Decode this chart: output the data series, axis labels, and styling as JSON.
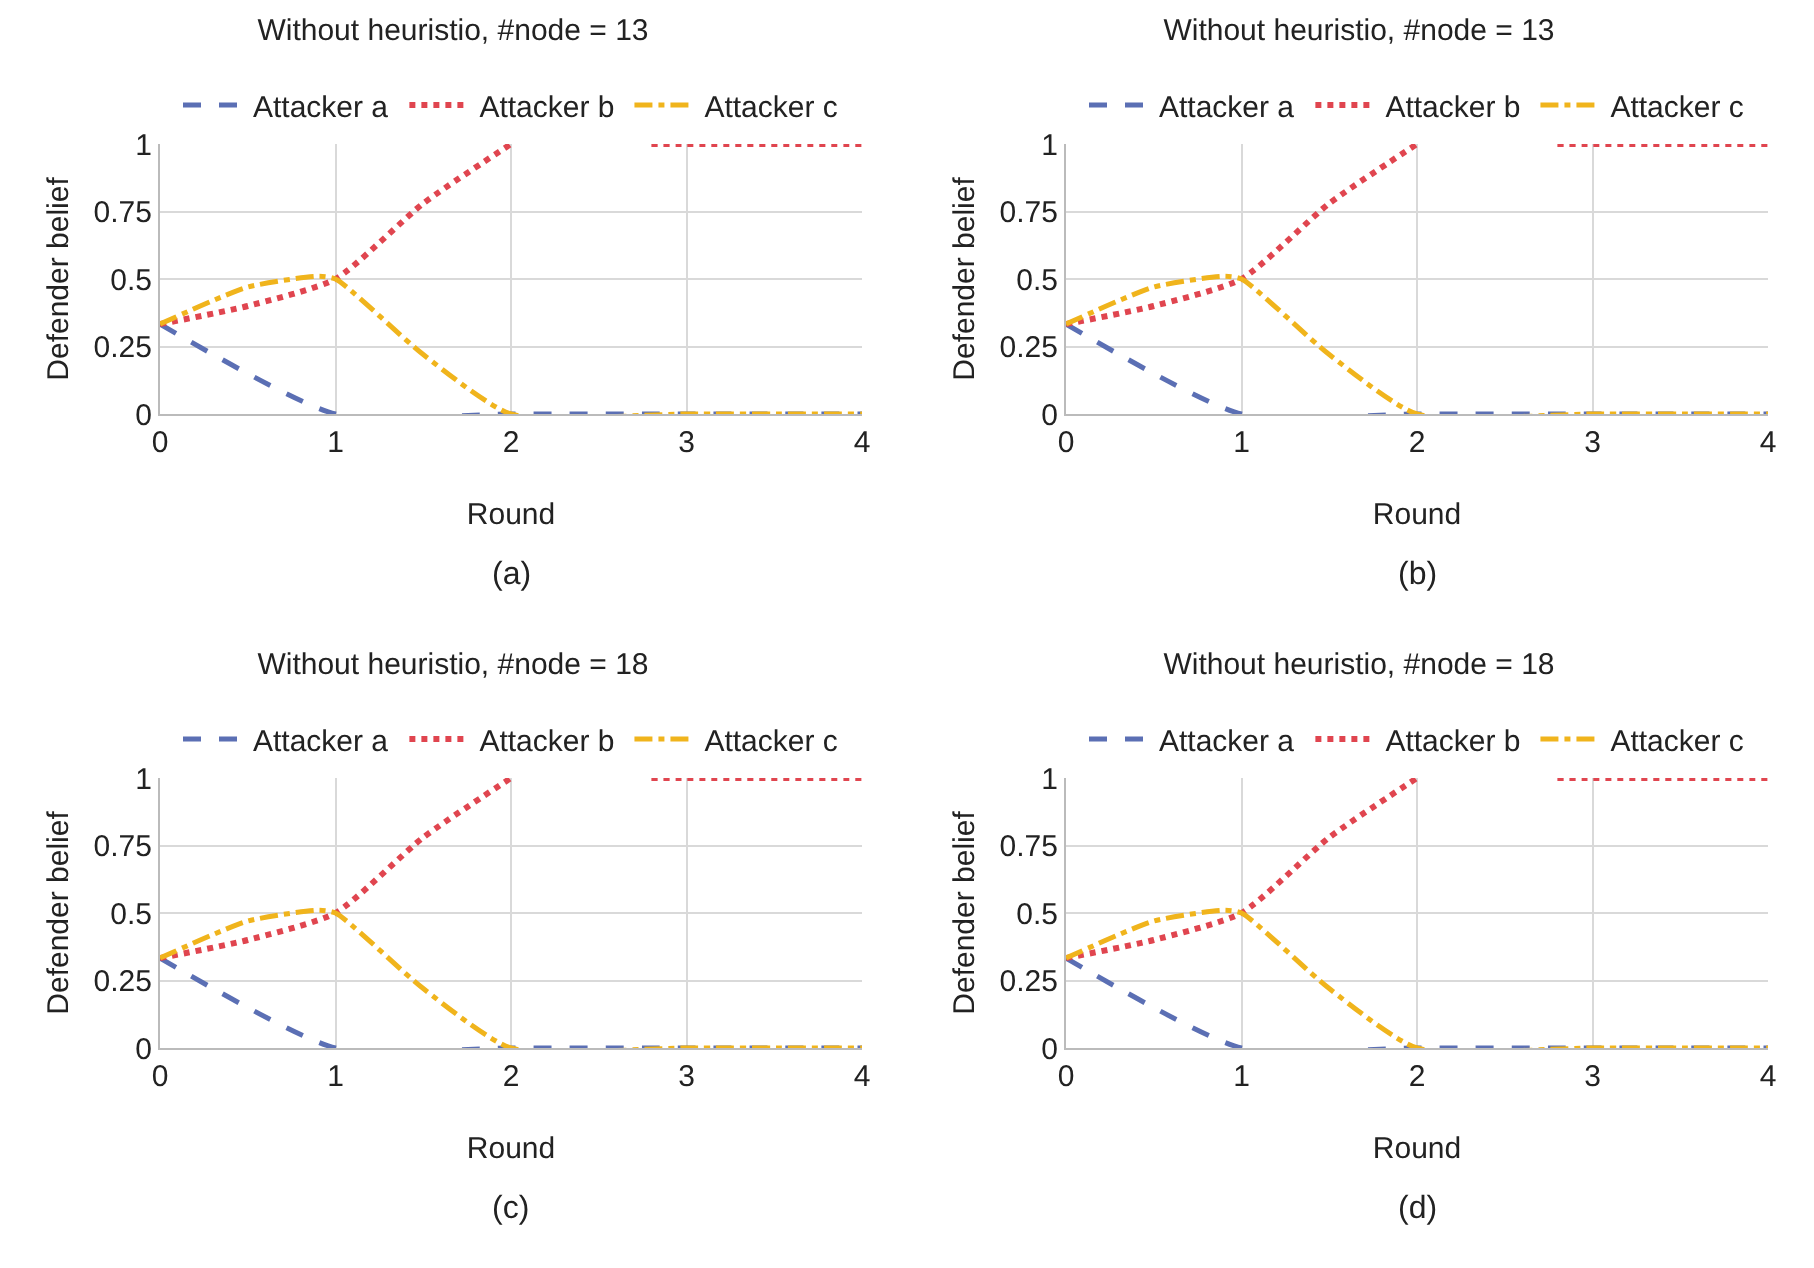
{
  "chart_data": [
    {
      "type": "line",
      "title": "Without heuristio, #node = 13",
      "xlabel": "Round",
      "ylabel": "Defender belief",
      "annotations": [
        "(a)"
      ],
      "xlim": [
        0,
        4
      ],
      "xticks": [
        0,
        1,
        2,
        3,
        4
      ],
      "ylim": [
        0,
        1
      ],
      "yticks": [
        0,
        0.25,
        0.5,
        0.75,
        1
      ],
      "grid": true,
      "legend": "top",
      "series": [
        {
          "name": "Attacker a",
          "color": "#5b6fb4",
          "line_style": "dashed",
          "x": [
            0,
            1,
            2,
            3,
            4
          ],
          "values": [
            0.333,
            0,
            0,
            0,
            0
          ]
        },
        {
          "name": "Attacker b",
          "color": "#e0454f",
          "line_style": "dotted",
          "x": [
            0,
            0.5,
            1,
            1.5,
            2,
            2.4,
            2.8,
            3,
            4
          ],
          "values": [
            0.333,
            0.4,
            0.5,
            0.78,
            1,
            null,
            1,
            1,
            1
          ]
        },
        {
          "name": "Attacker c",
          "color": "#f0b41c",
          "line_style": "dashdot",
          "x": [
            0,
            0.5,
            0.9,
            1,
            1.5,
            2,
            3,
            4
          ],
          "values": [
            0.333,
            0.47,
            0.51,
            0.5,
            0.22,
            0,
            0,
            0
          ]
        }
      ]
    },
    {
      "type": "line",
      "title": "Without heuristio, #node = 13",
      "xlabel": "Round",
      "ylabel": "Defender belief",
      "annotations": [
        "(b)"
      ],
      "xlim": [
        0,
        4
      ],
      "xticks": [
        0,
        1,
        2,
        3,
        4
      ],
      "ylim": [
        0,
        1
      ],
      "yticks": [
        0,
        0.25,
        0.5,
        0.75,
        1
      ],
      "grid": true,
      "legend": "top",
      "series": [
        {
          "name": "Attacker a",
          "color": "#5b6fb4",
          "line_style": "dashed",
          "x": [
            0,
            1,
            2,
            3,
            4
          ],
          "values": [
            0.333,
            0,
            0,
            0,
            0
          ]
        },
        {
          "name": "Attacker b",
          "color": "#e0454f",
          "line_style": "dotted",
          "x": [
            0,
            0.5,
            1,
            1.5,
            2,
            2.4,
            2.8,
            3,
            4
          ],
          "values": [
            0.333,
            0.4,
            0.5,
            0.78,
            1,
            null,
            1,
            1,
            1
          ]
        },
        {
          "name": "Attacker c",
          "color": "#f0b41c",
          "line_style": "dashdot",
          "x": [
            0,
            0.5,
            0.9,
            1,
            1.5,
            2,
            3,
            4
          ],
          "values": [
            0.333,
            0.47,
            0.51,
            0.5,
            0.22,
            0,
            0,
            0
          ]
        }
      ]
    },
    {
      "type": "line",
      "title": "Without heuristio, #node = 18",
      "xlabel": "Round",
      "ylabel": "Defender belief",
      "annotations": [
        "(c)"
      ],
      "xlim": [
        0,
        4
      ],
      "xticks": [
        0,
        1,
        2,
        3,
        4
      ],
      "ylim": [
        0,
        1
      ],
      "yticks": [
        0,
        0.25,
        0.5,
        0.75,
        1
      ],
      "grid": true,
      "legend": "top",
      "series": [
        {
          "name": "Attacker a",
          "color": "#5b6fb4",
          "line_style": "dashed",
          "x": [
            0,
            1,
            2,
            3,
            4
          ],
          "values": [
            0.333,
            0,
            0,
            0,
            0
          ]
        },
        {
          "name": "Attacker b",
          "color": "#e0454f",
          "line_style": "dotted",
          "x": [
            0,
            0.5,
            1,
            1.5,
            2,
            2.4,
            2.8,
            3,
            4
          ],
          "values": [
            0.333,
            0.4,
            0.5,
            0.78,
            1,
            null,
            1,
            1,
            1
          ]
        },
        {
          "name": "Attacker c",
          "color": "#f0b41c",
          "line_style": "dashdot",
          "x": [
            0,
            0.5,
            0.9,
            1,
            1.5,
            2,
            3,
            4
          ],
          "values": [
            0.333,
            0.47,
            0.51,
            0.5,
            0.22,
            0,
            0,
            0
          ]
        }
      ]
    },
    {
      "type": "line",
      "title": "Without heuristio, #node = 18",
      "xlabel": "Round",
      "ylabel": "Defender belief",
      "annotations": [
        "(d)"
      ],
      "xlim": [
        0,
        4
      ],
      "xticks": [
        0,
        1,
        2,
        3,
        4
      ],
      "ylim": [
        0,
        1
      ],
      "yticks": [
        0,
        0.25,
        0.5,
        0.75,
        1
      ],
      "grid": true,
      "legend": "top",
      "series": [
        {
          "name": "Attacker a",
          "color": "#5b6fb4",
          "line_style": "dashed",
          "x": [
            0,
            1,
            2,
            3,
            4
          ],
          "values": [
            0.333,
            0,
            0,
            0,
            0
          ]
        },
        {
          "name": "Attacker b",
          "color": "#e0454f",
          "line_style": "dotted",
          "x": [
            0,
            0.5,
            1,
            1.5,
            2,
            2.4,
            2.8,
            3,
            4
          ],
          "values": [
            0.333,
            0.4,
            0.5,
            0.78,
            1,
            null,
            1,
            1,
            1
          ]
        },
        {
          "name": "Attacker c",
          "color": "#f0b41c",
          "line_style": "dashdot",
          "x": [
            0,
            0.5,
            0.9,
            1,
            1.5,
            2,
            3,
            4
          ],
          "values": [
            0.333,
            0.47,
            0.51,
            0.5,
            0.22,
            0,
            0,
            0
          ]
        }
      ]
    }
  ]
}
